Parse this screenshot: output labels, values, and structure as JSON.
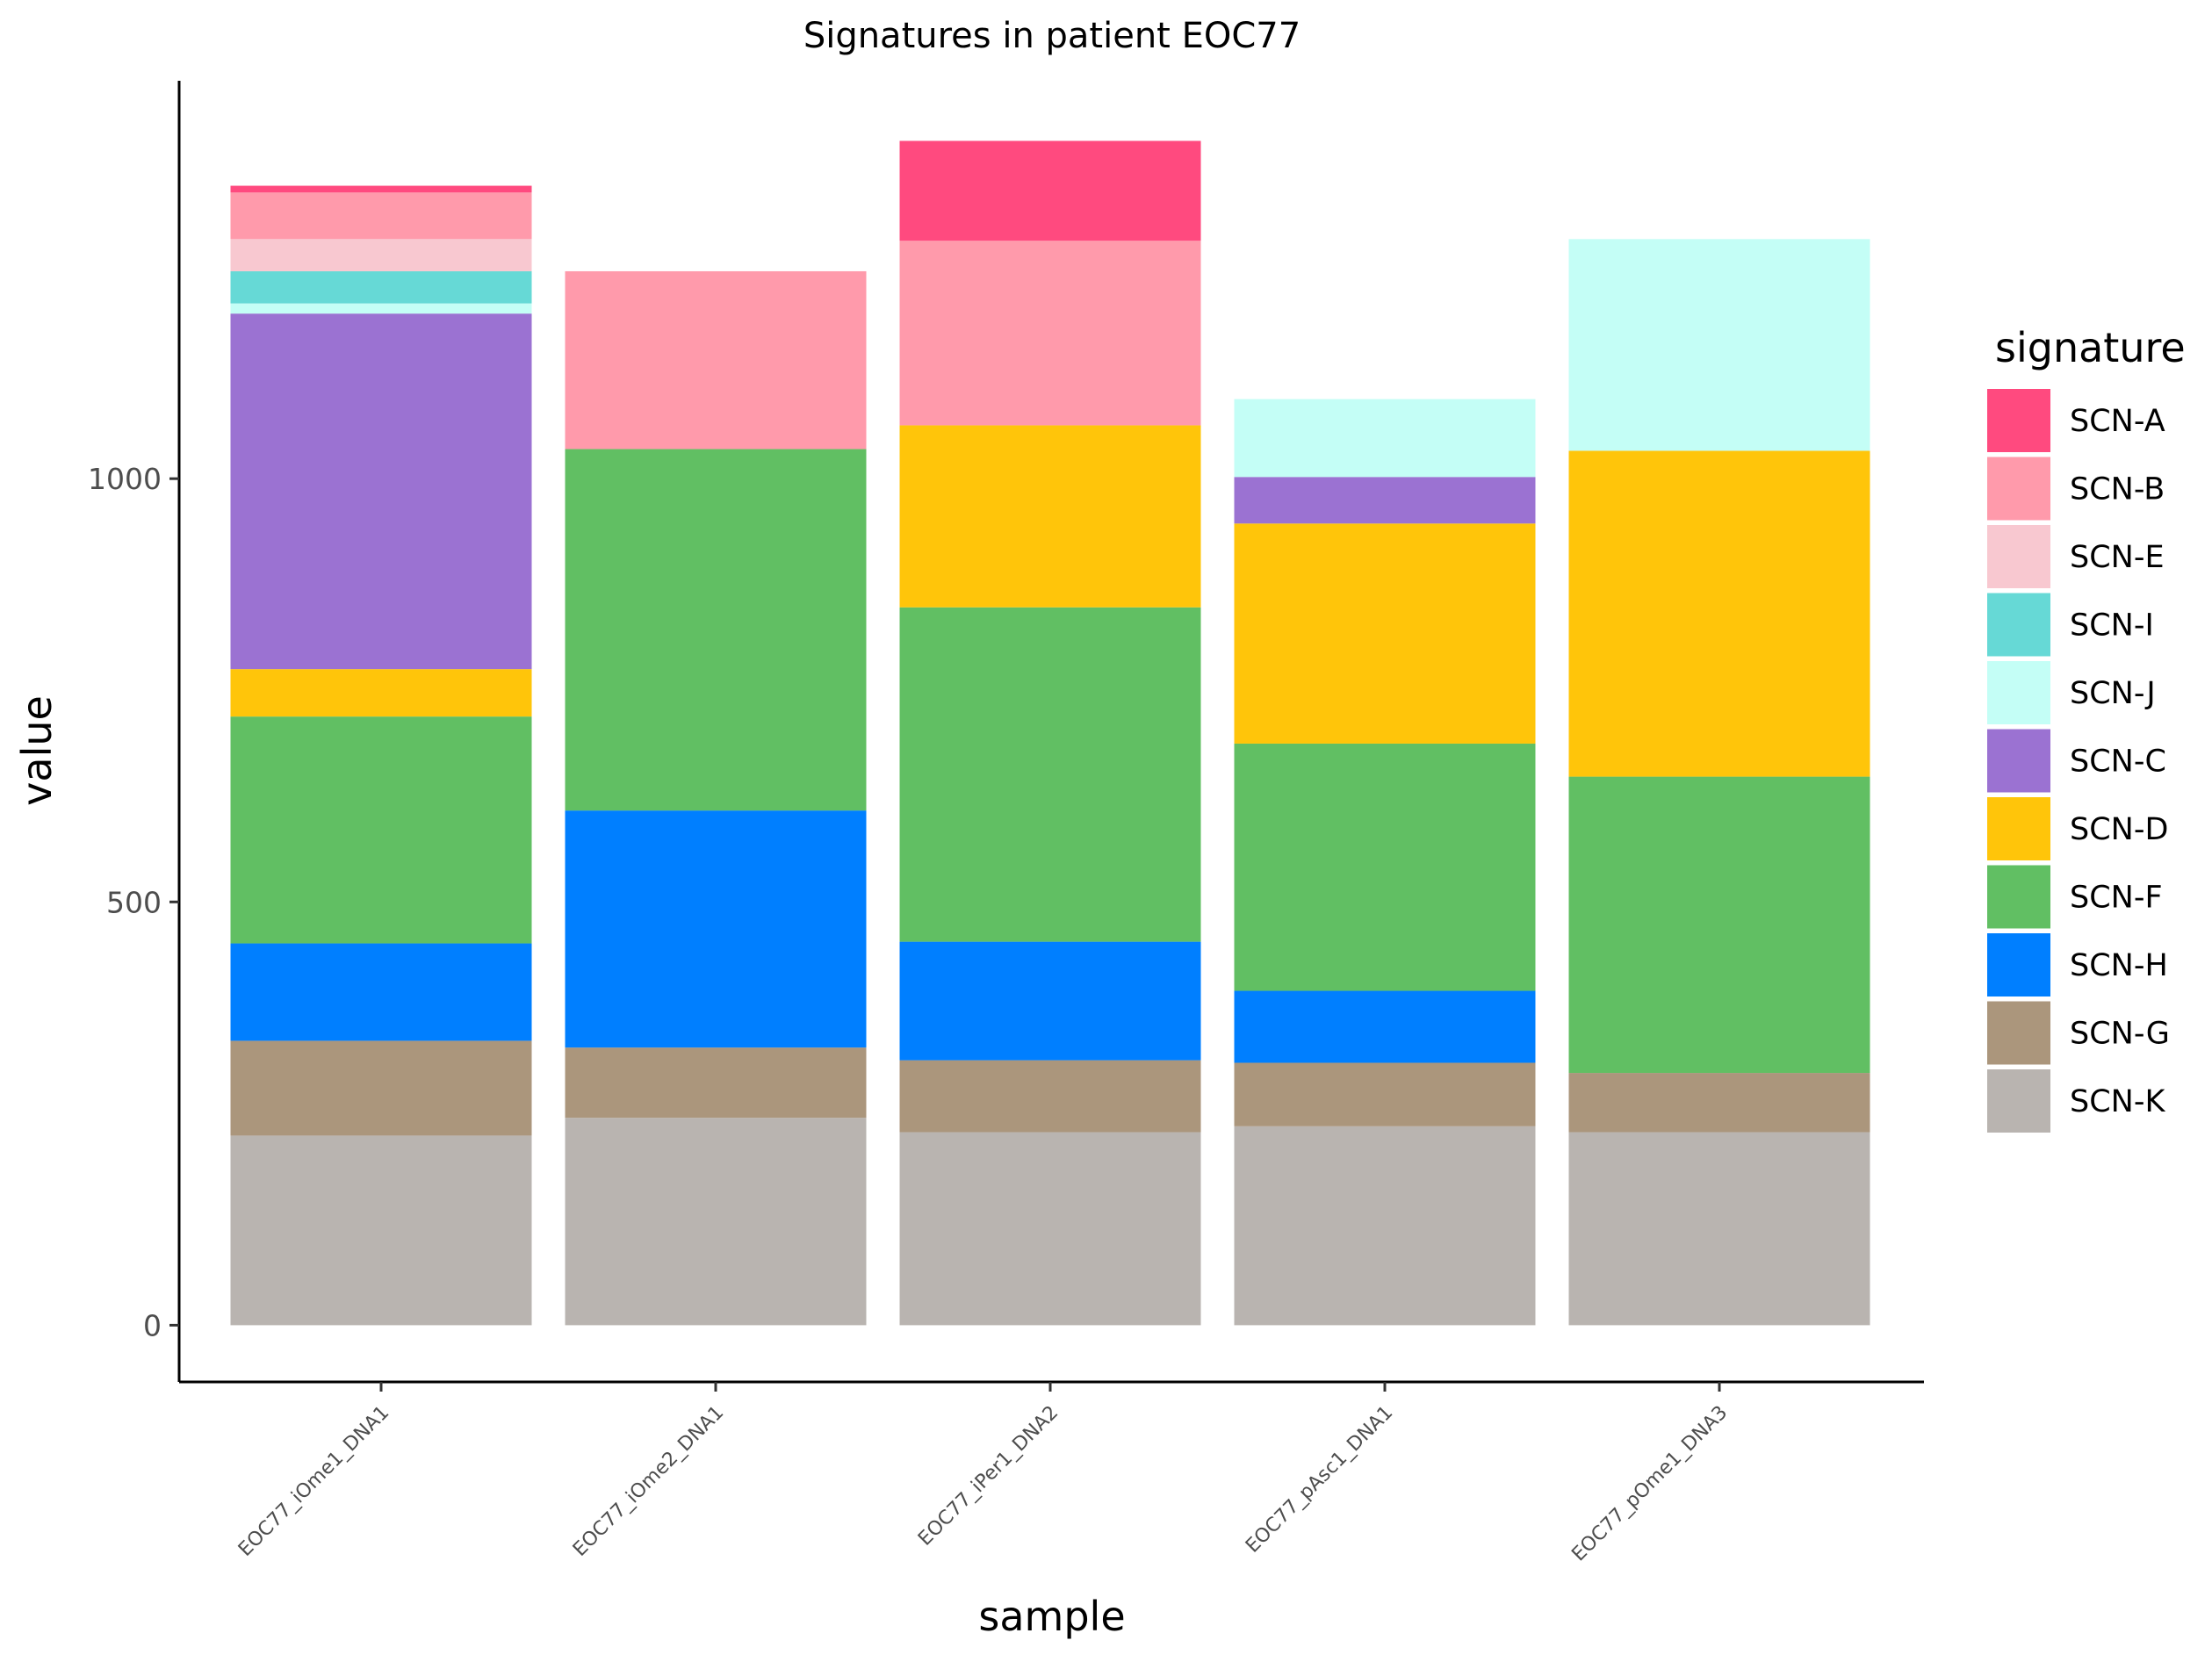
{
  "chart_data": {
    "type": "bar",
    "stacked": true,
    "title": "Signatures in patient EOC77",
    "xlabel": "sample",
    "ylabel": "value",
    "ylim": [
      -67,
      1470
    ],
    "yticks": [
      0,
      500,
      1000
    ],
    "grid": false,
    "legend_position": "right",
    "legend_title": "signature",
    "categories": [
      "EOC77_iOme1_DNA1",
      "EOC77_iOme2_DNA1",
      "EOC77_iPer1_DNA2",
      "EOC77_pAsc1_DNA1",
      "EOC77_pOme1_DNA3"
    ],
    "stack_order_bottom_to_top": [
      "SCN-K",
      "SCN-G",
      "SCN-H",
      "SCN-F",
      "SCN-D",
      "SCN-C",
      "SCN-J",
      "SCN-I",
      "SCN-E",
      "SCN-B",
      "SCN-A"
    ],
    "series": [
      {
        "name": "SCN-A",
        "color": "#ff4a7f",
        "values": [
          8,
          0,
          118,
          0,
          0
        ]
      },
      {
        "name": "SCN-B",
        "color": "#ff9aab",
        "values": [
          55,
          210,
          218,
          0,
          0
        ]
      },
      {
        "name": "SCN-E",
        "color": "#f8c8d0",
        "values": [
          38,
          0,
          0,
          0,
          0
        ]
      },
      {
        "name": "SCN-I",
        "color": "#66d9d6",
        "values": [
          38,
          0,
          0,
          0,
          0
        ]
      },
      {
        "name": "SCN-J",
        "color": "#c4fef6",
        "values": [
          12,
          0,
          0,
          92,
          250
        ]
      },
      {
        "name": "SCN-C",
        "color": "#9b72d2",
        "values": [
          420,
          0,
          0,
          55,
          0
        ]
      },
      {
        "name": "SCN-D",
        "color": "#ffc50a",
        "values": [
          56,
          0,
          215,
          260,
          385
        ]
      },
      {
        "name": "SCN-F",
        "color": "#61bf63",
        "values": [
          268,
          427,
          395,
          292,
          350
        ]
      },
      {
        "name": "SCN-H",
        "color": "#007fff",
        "values": [
          115,
          280,
          140,
          85,
          0
        ]
      },
      {
        "name": "SCN-G",
        "color": "#ab967c",
        "values": [
          112,
          83,
          85,
          75,
          70
        ]
      },
      {
        "name": "SCN-K",
        "color": "#b9b4b0",
        "values": [
          224,
          245,
          228,
          235,
          228
        ]
      }
    ]
  }
}
